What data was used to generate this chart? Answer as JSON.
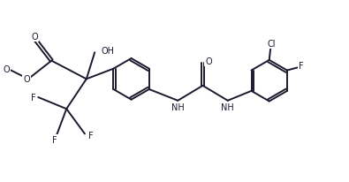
{
  "bg_color": "#ffffff",
  "line_color": "#1a1a2e",
  "fig_width": 3.95,
  "fig_height": 2.07,
  "dpi": 100,
  "bond_lw": 1.4,
  "font_size": 7.0,
  "xlim": [
    0,
    10.5
  ],
  "ylim": [
    0,
    5.5
  ]
}
